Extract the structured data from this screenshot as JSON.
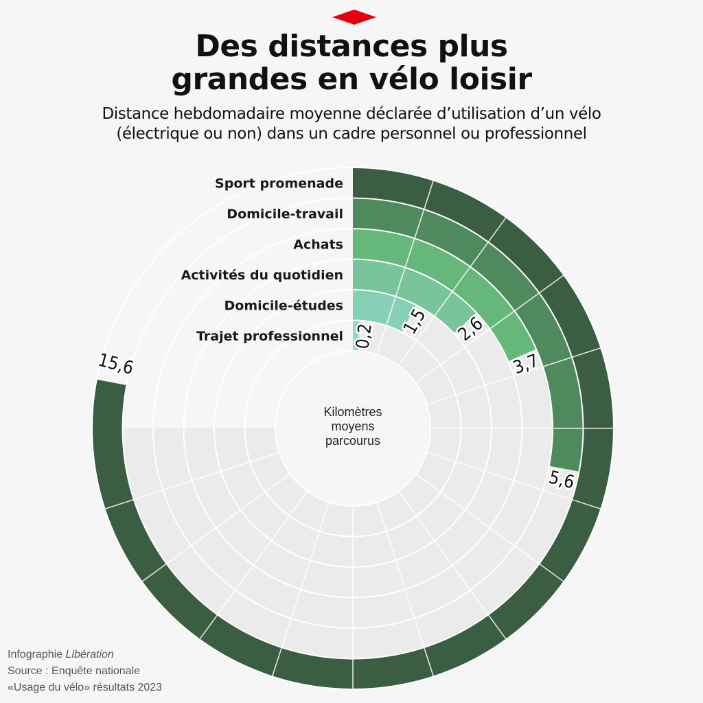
{
  "header": {
    "title_line1": "Des distances plus",
    "title_line2": "grandes en vélo loisir",
    "subtitle_line1": "Distance hebdomadaire moyenne déclarée d’utilisation d’un vélo",
    "subtitle_line2": "(électrique ou non) dans un cadre personnel ou professionnel"
  },
  "center_label": [
    "Kilomètres",
    "moyens",
    "parcourus"
  ],
  "credits": {
    "line1_prefix": "Infographie ",
    "line1_brand": "Libération",
    "line2": "Source : Enquête nationale",
    "line3": "«Usage du vélo» résultats 2023"
  },
  "colors": {
    "background": "#f6f6f6",
    "track": "#ebebeb",
    "logo": "#e3000f"
  },
  "chart_data": {
    "type": "radial-bar",
    "title": "Des distances plus grandes en vélo loisir",
    "unit": "km",
    "max_value": 20,
    "categories": [
      "Sport promenade",
      "Domicile-travail",
      "Achats",
      "Activités du quotidien",
      "Domicile-études",
      "Trajet professionnel"
    ],
    "values": [
      15.6,
      5.6,
      3.7,
      2.6,
      1.5,
      0.2
    ],
    "value_labels": [
      "15,6",
      "5,6",
      "3,7",
      "2,6",
      "1,5",
      "0,2"
    ],
    "colors": [
      "#3b5e43",
      "#4f8a5e",
      "#66b87a",
      "#79c49a",
      "#86d0b6",
      "#93d9cc"
    ]
  }
}
